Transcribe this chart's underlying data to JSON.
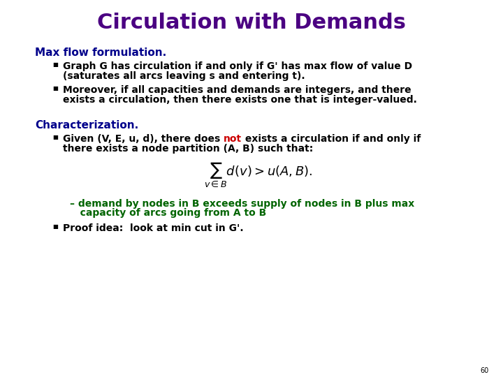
{
  "title": "Circulation with Demands",
  "title_color": "#4B0082",
  "title_fontsize": 22,
  "bg_color": "#ffffff",
  "section1_label": "Max flow formulation.",
  "section1_color": "#00008B",
  "section1_fontsize": 11,
  "bullet1_1_line1": "Graph G has circulation if and only if G' has max flow of value D",
  "bullet1_1_line2": "(saturates all arcs leaving s and entering t).",
  "bullet1_2_line1": "Moreover, if all capacities and demands are integers, and there",
  "bullet1_2_line2": "exists a circulation, then there exists one that is integer-valued.",
  "section2_label": "Characterization.",
  "section2_color": "#00008B",
  "section2_fontsize": 11,
  "b21_pre": "Given (V, E, u, d), there does ",
  "b21_not": "not",
  "b21_post": " exists a circulation if and only if",
  "b21_line2": "there exists a node partition (A, B) such that:",
  "not_color": "#CC0000",
  "formula": "$\\sum_{v \\in B} d(v) > u(A, B).$",
  "formula_fontsize": 11,
  "dash_line1": "– demand by nodes in B exceeds supply of nodes in B plus max",
  "dash_line2": "   capacity of arcs going from A to B",
  "dash_color": "#006400",
  "dash_fontsize": 10,
  "bullet2_2": "Proof idea:  look at min cut in G'.",
  "bullet_fontsize": 10,
  "page_number": "60",
  "lmargin": 0.07,
  "bullet_indent": 0.035,
  "text_indent": 0.055
}
